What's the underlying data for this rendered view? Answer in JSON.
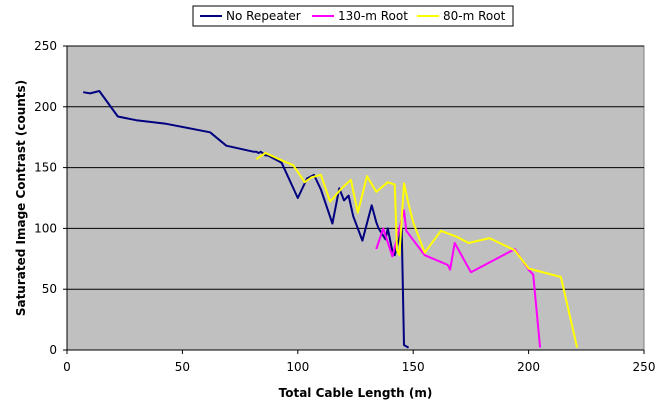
{
  "chart_data": {
    "type": "line",
    "title": "",
    "xlabel": "Total Cable Length (m)",
    "ylabel": "Saturated Image Contrast (counts)",
    "xlim": [
      0,
      250
    ],
    "ylim": [
      0,
      250
    ],
    "x_ticks": [
      0,
      50,
      100,
      150,
      200,
      250
    ],
    "y_ticks": [
      0,
      50,
      100,
      150,
      200,
      250
    ],
    "grid": "horizontal",
    "plot_background": "#c0c0c0",
    "legend_position": "top",
    "series": [
      {
        "name": "No Repeater",
        "color": "#000080",
        "points": [
          [
            7,
            212
          ],
          [
            10,
            211
          ],
          [
            14,
            213
          ],
          [
            22,
            192
          ],
          [
            30,
            189
          ],
          [
            43,
            186
          ],
          [
            62,
            179
          ],
          [
            69,
            168
          ],
          [
            81,
            163
          ],
          [
            82,
            163
          ],
          [
            83,
            162
          ],
          [
            84,
            163
          ],
          [
            86,
            160
          ],
          [
            87,
            160
          ],
          [
            93,
            154
          ],
          [
            100,
            125
          ],
          [
            104,
            141
          ],
          [
            107,
            144
          ],
          [
            110,
            132
          ],
          [
            115,
            104
          ],
          [
            118,
            133
          ],
          [
            120,
            123
          ],
          [
            122,
            127
          ],
          [
            124,
            110
          ],
          [
            128,
            90
          ],
          [
            132,
            119
          ],
          [
            134,
            105
          ],
          [
            135,
            100
          ],
          [
            138,
            91
          ],
          [
            139,
            100
          ],
          [
            141,
            81
          ],
          [
            142,
            78
          ],
          [
            145,
            100
          ],
          [
            146,
            4
          ],
          [
            148,
            2
          ]
        ]
      },
      {
        "name": "130-m Root",
        "color": "#ff00ff",
        "points": [
          [
            134,
            83
          ],
          [
            137,
            100
          ],
          [
            141,
            77
          ],
          [
            146,
            115
          ],
          [
            147,
            98
          ],
          [
            155,
            78
          ],
          [
            165,
            70
          ],
          [
            166,
            66
          ],
          [
            168,
            88
          ],
          [
            175,
            64
          ],
          [
            194,
            83
          ],
          [
            200,
            66
          ],
          [
            202,
            62
          ],
          [
            205,
            2
          ]
        ]
      },
      {
        "name": "80-m Root",
        "color": "#ffff00",
        "points": [
          [
            82,
            157
          ],
          [
            86,
            162
          ],
          [
            93,
            156
          ],
          [
            98,
            152
          ],
          [
            103,
            138
          ],
          [
            106,
            142
          ],
          [
            110,
            144
          ],
          [
            114,
            122
          ],
          [
            119,
            133
          ],
          [
            123,
            140
          ],
          [
            126,
            113
          ],
          [
            130,
            143
          ],
          [
            134,
            130
          ],
          [
            139,
            138
          ],
          [
            142,
            136
          ],
          [
            143,
            82
          ],
          [
            144,
            78
          ],
          [
            146,
            137
          ],
          [
            148,
            120
          ],
          [
            150,
            105
          ],
          [
            155,
            80
          ],
          [
            162,
            98
          ],
          [
            169,
            93
          ],
          [
            174,
            88
          ],
          [
            183,
            92
          ],
          [
            194,
            82
          ],
          [
            200,
            67
          ],
          [
            214,
            60
          ],
          [
            221,
            2
          ]
        ]
      }
    ]
  }
}
